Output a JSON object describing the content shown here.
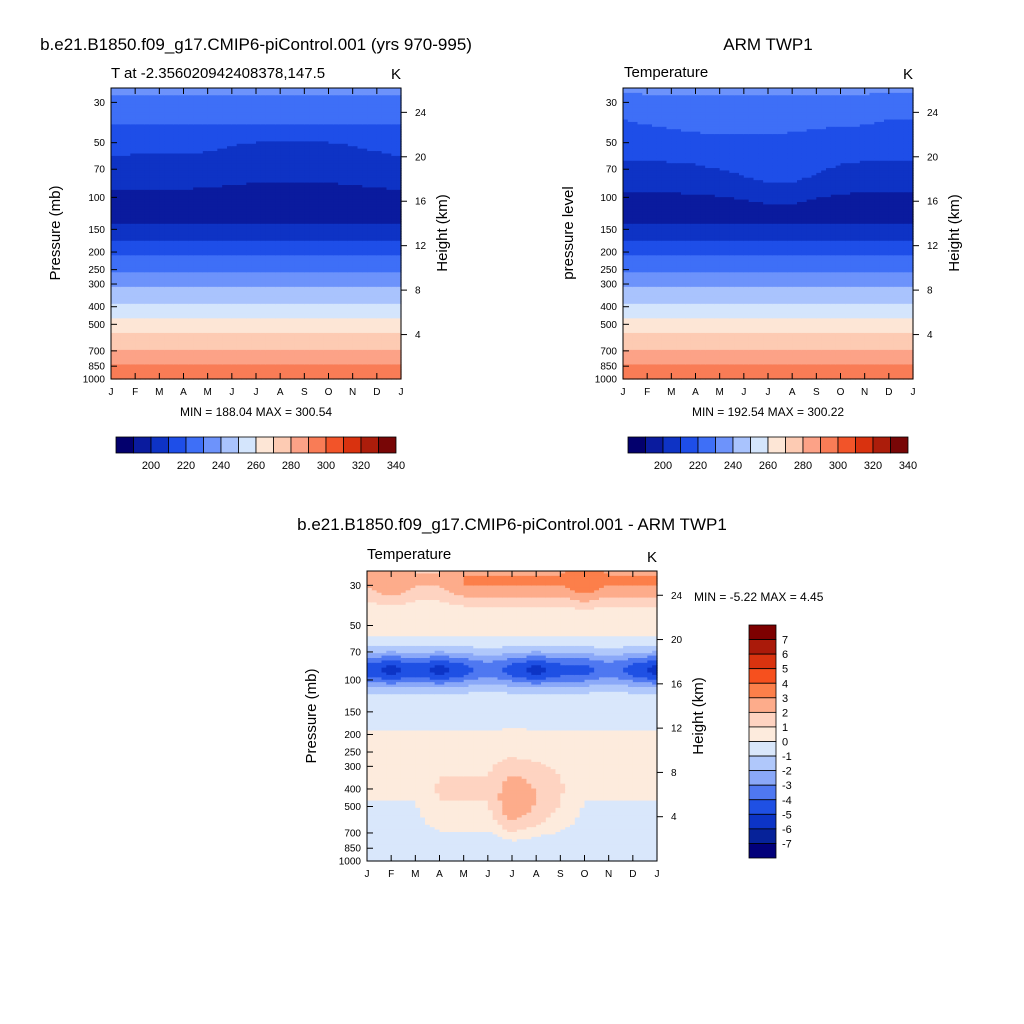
{
  "panels": [
    {
      "title": "b.e21.B1850.f09_g17.CMIP6-piControl.001 (yrs 970-995)",
      "left_label": "T at -2.356020942408378,147.5",
      "right_label": "K",
      "ylabel_left": "Pressure (mb)",
      "ylabel_right": "Height (km)",
      "minmax": "MIN = 188.04 MAX = 300.54"
    },
    {
      "title": "ARM TWP1",
      "left_label": "Temperature",
      "right_label": "K",
      "ylabel_left": "pressure level",
      "ylabel_right": "Height (km)",
      "minmax": "MIN = 192.54 MAX = 300.22"
    },
    {
      "title": "b.e21.B1850.f09_g17.CMIP6-piControl.001 - ARM TWP1",
      "left_label": "Temperature",
      "right_label": "K",
      "ylabel_left": "Pressure (mb)",
      "ylabel_right": "Height (km)",
      "minmax": "MIN =   -5.22 MAX =    4.45"
    }
  ],
  "chart_data": [
    {
      "type": "heatmap",
      "title": "b.e21.B1850.f09_g17.CMIP6-piControl.001 (yrs 970-995)",
      "x": [
        "J",
        "F",
        "M",
        "A",
        "M",
        "J",
        "J",
        "A",
        "S",
        "O",
        "N",
        "D",
        "J"
      ],
      "pressure_ticks": [
        30,
        50,
        70,
        100,
        150,
        200,
        250,
        300,
        400,
        500,
        700,
        850,
        1000
      ],
      "height_ticks": [
        4,
        8,
        12,
        16,
        20,
        24
      ],
      "ylim": [
        1000,
        25
      ],
      "levels": [
        190,
        200,
        210,
        220,
        230,
        240,
        250,
        260,
        270,
        280,
        290,
        300,
        310,
        320,
        330,
        340,
        350
      ],
      "min": 188.04,
      "max": 300.54,
      "band_bounds": [
        {
          "temp": 200,
          "lower_bound_mb": [
            140,
            140,
            140,
            140,
            140,
            140,
            140,
            140,
            140,
            140,
            140,
            140,
            140
          ]
        },
        {
          "temp": 210,
          "lower_bound_mb": [
            60,
            58,
            58,
            58,
            56,
            52,
            50,
            49,
            49,
            50,
            52,
            56,
            60
          ]
        },
        {
          "temp": 220,
          "lower_bound_mb": [
            40,
            40,
            40,
            40,
            40,
            40,
            40,
            40,
            40,
            40,
            40,
            40,
            40
          ]
        }
      ]
    },
    {
      "type": "heatmap",
      "title": "ARM TWP1",
      "x": [
        "J",
        "F",
        "M",
        "A",
        "M",
        "J",
        "J",
        "A",
        "S",
        "O",
        "N",
        "D",
        "J"
      ],
      "pressure_ticks": [
        30,
        50,
        70,
        100,
        150,
        200,
        250,
        300,
        400,
        500,
        700,
        850,
        1000
      ],
      "height_ticks": [
        4,
        8,
        12,
        16,
        20,
        24
      ],
      "ylim": [
        1000,
        25
      ],
      "levels": [
        190,
        200,
        210,
        220,
        230,
        240,
        250,
        260,
        270,
        280,
        290,
        300,
        310,
        320,
        330,
        340,
        350
      ],
      "min": 192.54,
      "max": 300.22,
      "band_bounds": [
        {
          "temp": 200,
          "lower_bound_mb": [
            140,
            140,
            140,
            140,
            140,
            140,
            140,
            140,
            140,
            140,
            140,
            140,
            140
          ]
        },
        {
          "temp": 210,
          "lower_bound_mb": [
            62,
            63,
            64,
            66,
            70,
            76,
            84,
            84,
            74,
            66,
            63,
            62,
            62
          ]
        },
        {
          "temp": 220,
          "lower_bound_mb": [
            37,
            40,
            42,
            44,
            45,
            45,
            45,
            44,
            42,
            41,
            40,
            37,
            37
          ]
        }
      ]
    },
    {
      "type": "heatmap",
      "title": "b.e21.B1850.f09_g17.CMIP6-piControl.001 - ARM TWP1",
      "x": [
        "J",
        "F",
        "M",
        "A",
        "M",
        "J",
        "J",
        "A",
        "S",
        "O",
        "N",
        "D",
        "J"
      ],
      "pressure_ticks": [
        30,
        50,
        70,
        100,
        150,
        200,
        250,
        300,
        400,
        500,
        700,
        850,
        1000
      ],
      "height_ticks": [
        4,
        8,
        12,
        16,
        20,
        24
      ],
      "ylim": [
        1000,
        25
      ],
      "levels": [
        -7,
        -6,
        -5,
        -4,
        -3,
        -2,
        -1,
        0,
        1,
        2,
        3,
        4,
        5,
        6,
        7
      ],
      "min": -5.22,
      "max": 4.45,
      "stratosphere_warm_anomaly_max": [
        2,
        3,
        2,
        2,
        3,
        3,
        3,
        3,
        3,
        4,
        3,
        3,
        3
      ],
      "tropopause_cold_anomaly_min": [
        -4,
        -5,
        -4,
        -5,
        -4,
        -3,
        -4,
        -5,
        -4,
        -4,
        -3,
        -4,
        -5
      ],
      "mid_troposphere_warm_anomaly_max": [
        0,
        0,
        0,
        1,
        1,
        1,
        3,
        2,
        1,
        0,
        0,
        0,
        0
      ]
    }
  ],
  "colorbar_temp": {
    "labels": [
      "200",
      "220",
      "240",
      "260",
      "280",
      "300",
      "320",
      "340"
    ],
    "colors": [
      "#03006d",
      "#0a1b9e",
      "#0e33c5",
      "#1e4ee8",
      "#3e6ff7",
      "#6d93fb",
      "#a9c3fd",
      "#d4e5fc",
      "#fde6d6",
      "#fdcbb3",
      "#fca287",
      "#f97c56",
      "#f25429",
      "#d9320f",
      "#ac1d0b",
      "#780606"
    ]
  },
  "colorbar_diff": {
    "labels": [
      "7",
      "6",
      "5",
      "4",
      "3",
      "2",
      "1",
      "0",
      "-1",
      "-2",
      "-3",
      "-4",
      "-5",
      "-6",
      "-7"
    ],
    "colors": [
      "#7d0000",
      "#aa1a0a",
      "#d9330f",
      "#f6501e",
      "#fc7f4a",
      "#fdac8b",
      "#fed3c1",
      "#fdebdd",
      "#d9e7fb",
      "#b0c8fb",
      "#8aa8f8",
      "#4f78f1",
      "#1f50e4",
      "#0c34c6",
      "#062299",
      "#02007a"
    ]
  },
  "colors": {
    "t_band_colors_top_to_bottom": [
      "#0e33c5",
      "#0a1b9e",
      "#03006d",
      "#0a1b9e",
      "#0e33c5",
      "#1e4ee8",
      "#3e6ff7",
      "#6d93fb",
      "#a9c3fd",
      "#d4e5fc",
      "#fde6d6",
      "#fdcbb3",
      "#fca287"
    ]
  }
}
